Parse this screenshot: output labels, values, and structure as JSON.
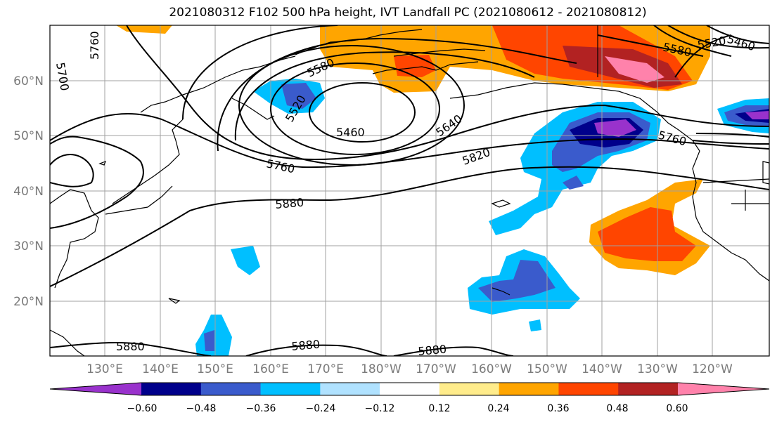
{
  "title": "2021080312 F102 500 hPa height, IVT Landfall PC (2021080612 - 2021080812)",
  "map": {
    "lat_labels": [
      "60°N",
      "50°N",
      "40°N",
      "30°N",
      "20°N"
    ],
    "lon_labels": [
      "130°E",
      "140°E",
      "150°E",
      "160°E",
      "170°E",
      "180°W",
      "170°W",
      "160°W",
      "150°W",
      "140°W",
      "130°W",
      "120°W"
    ],
    "contour_labels": [
      "5760",
      "5700",
      "5580",
      "5520",
      "5460",
      "5580",
      "5520",
      "5460",
      "5640",
      "5760",
      "5820",
      "5760",
      "5880",
      "5880",
      "5880",
      "5880"
    ]
  },
  "colorbar": {
    "ticks": [
      "−0.60",
      "−0.48",
      "−0.36",
      "−0.24",
      "−0.12",
      "0.12",
      "0.24",
      "0.36",
      "0.48",
      "0.60"
    ],
    "colors": [
      "#9932cc",
      "#00008b",
      "#3a5bcc",
      "#00bfff",
      "#b0e2ff",
      "#ffffff",
      "#ffec8b",
      "#ffa500",
      "#ff4500",
      "#b22222",
      "#ff82ab"
    ]
  }
}
